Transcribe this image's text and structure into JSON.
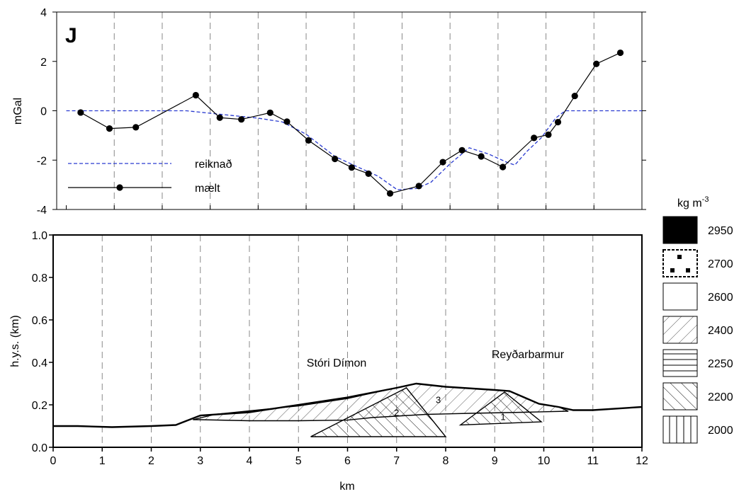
{
  "panel_letter": "J",
  "legend_units": {
    "base": "kg m",
    "exp": "-3"
  },
  "chart_data": [
    {
      "type": "line",
      "ylabel": "mGal",
      "xlim": [
        -0.2,
        12
      ],
      "ylim": [
        -4,
        4
      ],
      "yticks": [
        "-4",
        "-2",
        "0",
        "2",
        "4"
      ],
      "grid": "vertical dashed every 1 km",
      "legend_placement": "lower-left",
      "series": [
        {
          "name": "reiknað",
          "style": "dashed",
          "color": "#2a3bd0",
          "points": [
            [
              0,
              0
            ],
            [
              1,
              0
            ],
            [
              2,
              0
            ],
            [
              2.5,
              0
            ],
            [
              3,
              -0.1
            ],
            [
              3.5,
              -0.2
            ],
            [
              4,
              -0.3
            ],
            [
              4.5,
              -0.45
            ],
            [
              5,
              -0.95
            ],
            [
              5.6,
              -1.85
            ],
            [
              6.1,
              -2.3
            ],
            [
              6.5,
              -2.65
            ],
            [
              6.9,
              -3.2
            ],
            [
              7.3,
              -3.15
            ],
            [
              7.6,
              -2.9
            ],
            [
              8,
              -2.15
            ],
            [
              8.4,
              -1.5
            ],
            [
              8.8,
              -1.75
            ],
            [
              9.2,
              -2.1
            ],
            [
              9.35,
              -2.2
            ],
            [
              9.6,
              -1.65
            ],
            [
              9.9,
              -1.1
            ],
            [
              10.2,
              -0.3
            ],
            [
              10.4,
              0
            ],
            [
              11,
              0
            ],
            [
              12,
              0
            ]
          ]
        },
        {
          "name": "mælt",
          "style": "solid-dots",
          "color": "#000000",
          "points": [
            [
              0.3,
              -0.07
            ],
            [
              0.9,
              -0.72
            ],
            [
              1.45,
              -0.67
            ],
            [
              2.7,
              0.63
            ],
            [
              3.2,
              -0.28
            ],
            [
              3.65,
              -0.35
            ],
            [
              4.25,
              -0.08
            ],
            [
              4.6,
              -0.44
            ],
            [
              5.05,
              -1.2
            ],
            [
              5.6,
              -1.95
            ],
            [
              5.95,
              -2.3
            ],
            [
              6.3,
              -2.55
            ],
            [
              6.75,
              -3.35
            ],
            [
              7.35,
              -3.05
            ],
            [
              7.85,
              -2.08
            ],
            [
              8.25,
              -1.6
            ],
            [
              8.65,
              -1.85
            ],
            [
              9.1,
              -2.28
            ],
            [
              9.75,
              -1.1
            ],
            [
              10.05,
              -0.97
            ],
            [
              10.25,
              -0.46
            ],
            [
              10.6,
              0.6
            ],
            [
              11.05,
              1.9
            ],
            [
              11.55,
              2.35
            ]
          ]
        }
      ]
    },
    {
      "type": "area",
      "xlabel": "km",
      "ylabel": "h.y.s. (km)",
      "xlim": [
        0,
        12
      ],
      "ylim": [
        0,
        1
      ],
      "xticks": [
        "0",
        "1",
        "2",
        "3",
        "4",
        "5",
        "6",
        "7",
        "8",
        "9",
        "10",
        "11",
        "12"
      ],
      "yticks": [
        "0.0",
        "0.2",
        "0.4",
        "0.6",
        "0.8",
        "1.0"
      ],
      "grid": "vertical dashed every 1 km",
      "labels": [
        "Stóri Dímon",
        "Reyðarbarmur"
      ],
      "body_numbers": [
        "1",
        "2",
        "3"
      ],
      "topography": [
        [
          0,
          0.1
        ],
        [
          0.5,
          0.1
        ],
        [
          1.2,
          0.095
        ],
        [
          2,
          0.1
        ],
        [
          2.5,
          0.105
        ],
        [
          3,
          0.15
        ],
        [
          4,
          0.165
        ],
        [
          5,
          0.2
        ],
        [
          6,
          0.235
        ],
        [
          7,
          0.28
        ],
        [
          7.4,
          0.3
        ],
        [
          8,
          0.285
        ],
        [
          9,
          0.27
        ],
        [
          9.3,
          0.265
        ],
        [
          9.6,
          0.235
        ],
        [
          9.9,
          0.205
        ],
        [
          10.3,
          0.19
        ],
        [
          10.6,
          0.175
        ],
        [
          11,
          0.175
        ],
        [
          12,
          0.19
        ]
      ],
      "bodies": [
        {
          "id": "3",
          "density": "2400",
          "polygon": [
            [
              2.85,
              0.13
            ],
            [
              3.3,
              0.155
            ],
            [
              5,
              0.195
            ],
            [
              6,
              0.23
            ],
            [
              7,
              0.28
            ],
            [
              7.4,
              0.3
            ],
            [
              8,
              0.285
            ],
            [
              9,
              0.27
            ],
            [
              9.3,
              0.265
            ],
            [
              9.6,
              0.235
            ],
            [
              9.9,
              0.205
            ],
            [
              10.3,
              0.19
            ],
            [
              10.5,
              0.17
            ],
            [
              9.6,
              0.165
            ],
            [
              8.5,
              0.16
            ],
            [
              7.6,
              0.155
            ],
            [
              6.5,
              0.14
            ],
            [
              6,
              0.128
            ],
            [
              5,
              0.125
            ],
            [
              4,
              0.125
            ],
            [
              3,
              0.13
            ]
          ]
        },
        {
          "id": "2",
          "density": "2200",
          "polygon": [
            [
              5.25,
              0.05
            ],
            [
              7.2,
              0.28
            ],
            [
              8,
              0.05
            ]
          ]
        },
        {
          "id": "1",
          "density": "2200",
          "polygon": [
            [
              8.3,
              0.105
            ],
            [
              9.2,
              0.26
            ],
            [
              9.95,
              0.12
            ]
          ]
        }
      ]
    }
  ],
  "density_legend": [
    {
      "value": "2950",
      "pattern": "solid"
    },
    {
      "value": "2700",
      "pattern": "dots"
    },
    {
      "value": "2600",
      "pattern": "blank"
    },
    {
      "value": "2400",
      "pattern": "sparse-diagonal"
    },
    {
      "value": "2250",
      "pattern": "horizontal"
    },
    {
      "value": "2200",
      "pattern": "diagonal"
    },
    {
      "value": "2000",
      "pattern": "vertical"
    }
  ]
}
